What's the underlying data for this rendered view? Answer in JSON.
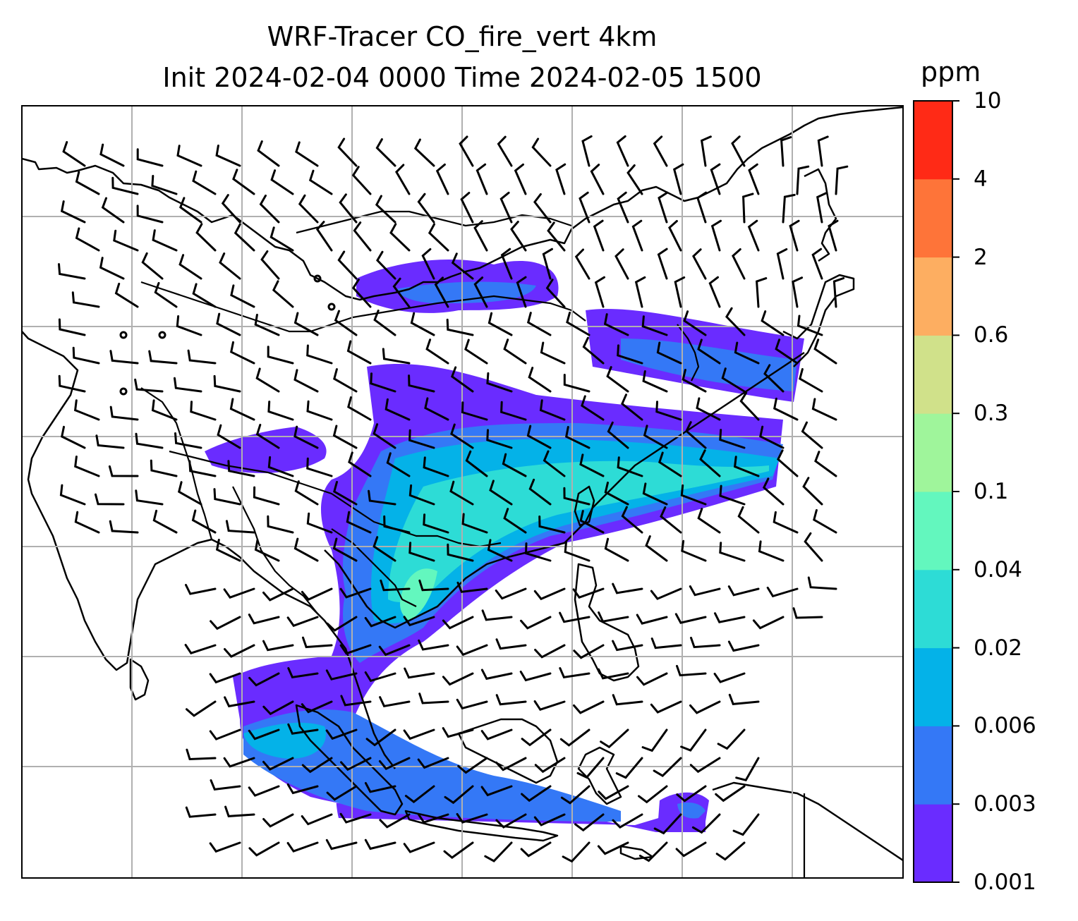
{
  "title": {
    "line1": "WRF-Tracer CO_fire_vert 4km",
    "line2": "Init 2024-02-04 0000 Time 2024-02-05 1500"
  },
  "colorbar": {
    "unit": "ppm",
    "levels": [
      "0.001",
      "0.003",
      "0.006",
      "0.02",
      "0.04",
      "0.1",
      "0.3",
      "0.6",
      "2",
      "4",
      "10"
    ],
    "colors": [
      "#6a2cff",
      "#3478f6",
      "#04b2e8",
      "#2ddcd6",
      "#63f7be",
      "#9ff59b",
      "#d0e18a",
      "#fdae61",
      "#fe7439",
      "#ff2a16"
    ]
  },
  "map": {
    "gridlines": true,
    "wind_barbs": true,
    "coastlines": true,
    "country_borders": true
  }
}
